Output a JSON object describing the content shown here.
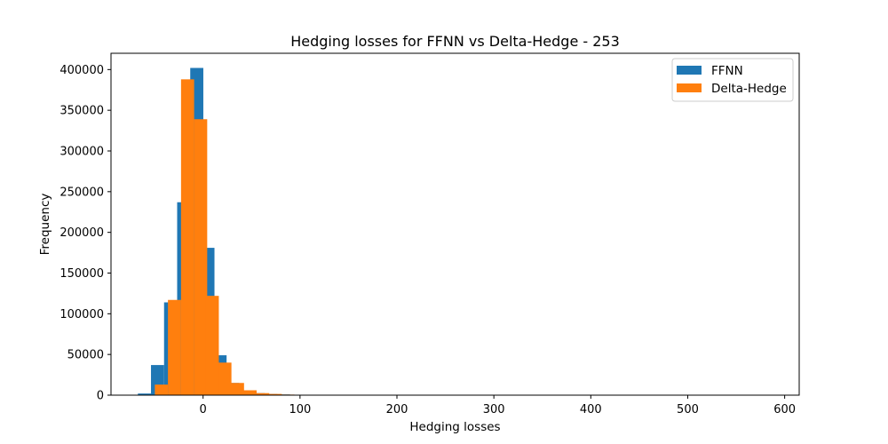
{
  "chart_data": {
    "type": "bar",
    "title": "Hedging losses for FFNN vs Delta-Hedge - 253",
    "xlabel": "Hedging losses",
    "ylabel": "Frequency",
    "xlim": [
      -95,
      615
    ],
    "ylim": [
      0,
      420000
    ],
    "xticks": [
      0,
      100,
      200,
      300,
      400,
      500,
      600
    ],
    "yticks": [
      0,
      50000,
      100000,
      150000,
      200000,
      250000,
      300000,
      350000,
      400000
    ],
    "bin_width": 13.5,
    "legend_position": "upper right",
    "series": [
      {
        "name": "FFNN",
        "color": "#1f77b4",
        "points": [
          {
            "x": -60.5,
            "y": 2000
          },
          {
            "x": -47,
            "y": 37000
          },
          {
            "x": -33.5,
            "y": 114000
          },
          {
            "x": -20,
            "y": 237000
          },
          {
            "x": -6.5,
            "y": 402000
          },
          {
            "x": 5,
            "y": 181000
          },
          {
            "x": 17.5,
            "y": 49000
          },
          {
            "x": 30.5,
            "y": 15000
          },
          {
            "x": 44,
            "y": 6000
          },
          {
            "x": 57,
            "y": 2500
          },
          {
            "x": 70,
            "y": 1500
          },
          {
            "x": 83,
            "y": 800
          },
          {
            "x": 96,
            "y": 400
          }
        ]
      },
      {
        "name": "Delta-Hedge",
        "color": "#ff7f0e",
        "points": [
          {
            "x": -43,
            "y": 13000
          },
          {
            "x": -29.5,
            "y": 117000
          },
          {
            "x": -16,
            "y": 388000
          },
          {
            "x": -2.5,
            "y": 339000
          },
          {
            "x": 9.5,
            "y": 122000
          },
          {
            "x": 22.5,
            "y": 40000
          },
          {
            "x": 35.5,
            "y": 15000
          },
          {
            "x": 48.5,
            "y": 6000
          },
          {
            "x": 61.5,
            "y": 2500
          },
          {
            "x": 74.5,
            "y": 1500
          },
          {
            "x": 87.5,
            "y": 700
          },
          {
            "x": 100.5,
            "y": 300
          }
        ]
      }
    ]
  }
}
